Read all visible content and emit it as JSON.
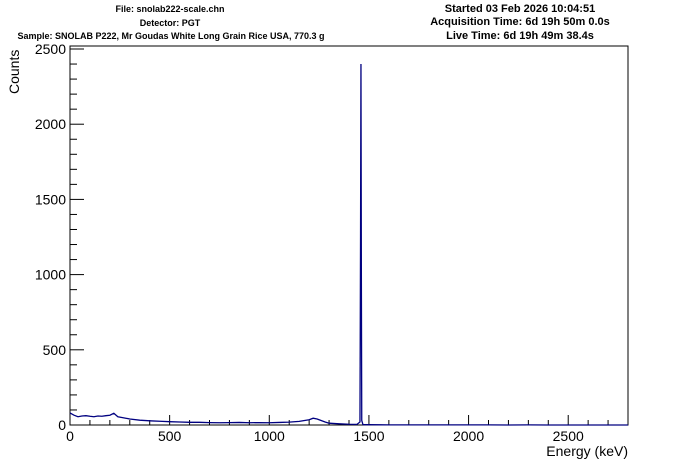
{
  "header": {
    "file": "File: snolab222-scale.chn",
    "detector": "Detector: PGT",
    "sample": "Sample: SNOLAB P222, Mr Goudas White Long Grain Rice USA, 770.3 g",
    "started": "Started 03 Feb 2026 10:04:51",
    "acquisition_time": "Acquisition Time: 6d 19h 50m 0.0s",
    "live_time": "Live Time: 6d 19h 49m 38.4s"
  },
  "chart_data": {
    "type": "line",
    "xlabel": "Energy (keV)",
    "ylabel": "Counts",
    "xlim": [
      0,
      2800
    ],
    "ylim": [
      0,
      2520
    ],
    "x_ticks": [
      0,
      500,
      1000,
      1500,
      2000,
      2500
    ],
    "y_ticks": [
      0,
      500,
      1000,
      1500,
      2000,
      2500
    ],
    "grid": false,
    "line_color": "#000080",
    "series": [
      {
        "x": [
          0,
          20,
          40,
          60,
          80,
          100,
          120,
          140,
          160,
          180,
          200,
          220,
          240,
          260,
          280,
          300,
          350,
          400,
          450,
          500,
          550,
          600,
          650,
          700,
          750,
          800,
          850,
          900,
          950,
          1000,
          1050,
          1100,
          1150,
          1200,
          1220,
          1240,
          1260,
          1280,
          1300,
          1350,
          1400,
          1440,
          1455,
          1458,
          1460,
          1462,
          1464,
          1470,
          1480,
          1500,
          1600,
          1700,
          1800,
          1900,
          2000,
          2100,
          2200,
          2300,
          2400,
          2500,
          2600,
          2700,
          2800
        ],
        "y": [
          80,
          65,
          55,
          60,
          62,
          58,
          55,
          60,
          58,
          62,
          65,
          78,
          55,
          50,
          45,
          40,
          32,
          28,
          25,
          22,
          20,
          18,
          18,
          16,
          15,
          16,
          17,
          15,
          16,
          15,
          17,
          19,
          24,
          35,
          45,
          40,
          30,
          20,
          12,
          8,
          5,
          4,
          20,
          1280,
          2400,
          1000,
          30,
          3,
          2,
          2,
          1,
          1,
          1,
          1,
          1,
          1,
          0,
          1,
          0,
          0,
          0,
          0,
          0
        ]
      }
    ]
  }
}
